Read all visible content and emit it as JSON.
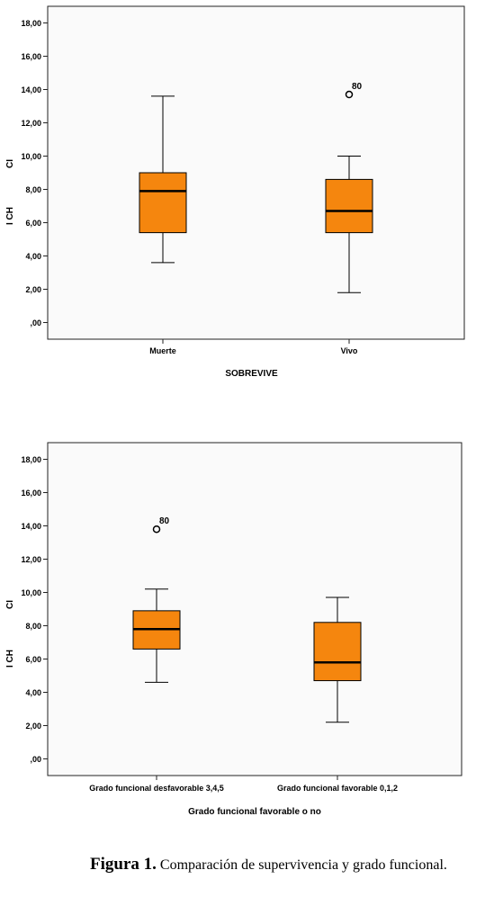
{
  "chart_data": [
    {
      "type": "boxplot",
      "xlabel": "SOBREVIVE",
      "ylabel": "I CH",
      "ylabel_extra": "CI",
      "ylim": [
        -1,
        19
      ],
      "yticks": [
        0,
        2,
        4,
        6,
        8,
        10,
        12,
        14,
        16,
        18
      ],
      "ytick_labels": [
        ",00",
        "2,00",
        "4,00",
        "6,00",
        "8,00",
        "10,00",
        "12,00",
        "14,00",
        "16,00",
        "18,00"
      ],
      "categories": [
        "Muerte",
        "Vivo"
      ],
      "boxes": [
        {
          "category": "Muerte",
          "whisker_low": 3.6,
          "q1": 5.4,
          "median": 7.9,
          "q3": 9.0,
          "whisker_high": 13.6,
          "outliers": []
        },
        {
          "category": "Vivo",
          "whisker_low": 1.8,
          "q1": 5.4,
          "median": 6.7,
          "q3": 8.6,
          "whisker_high": 10.0,
          "outliers": [
            {
              "value": 13.7,
              "label": "80"
            }
          ]
        }
      ],
      "box_color": "#f5860e",
      "grid": false
    },
    {
      "type": "boxplot",
      "xlabel": "Grado funcional favorable o no",
      "ylabel": "I CH",
      "ylabel_extra": "CI",
      "ylim": [
        -1,
        19
      ],
      "yticks": [
        0,
        2,
        4,
        6,
        8,
        10,
        12,
        14,
        16,
        18
      ],
      "ytick_labels": [
        ",00",
        "2,00",
        "4,00",
        "6,00",
        "8,00",
        "10,00",
        "12,00",
        "14,00",
        "16,00",
        "18,00"
      ],
      "categories": [
        "Grado funcional desfavorable 3,4,5",
        "Grado funcional favorable 0,1,2"
      ],
      "boxes": [
        {
          "category": "Grado funcional desfavorable 3,4,5",
          "whisker_low": 4.6,
          "q1": 6.6,
          "median": 7.8,
          "q3": 8.9,
          "whisker_high": 10.2,
          "outliers": [
            {
              "value": 13.8,
              "label": "80"
            }
          ]
        },
        {
          "category": "Grado funcional favorable 0,1,2",
          "whisker_low": 2.2,
          "q1": 4.7,
          "median": 5.8,
          "q3": 8.2,
          "whisker_high": 9.7,
          "outliers": []
        }
      ],
      "box_color": "#f5860e",
      "grid": false
    }
  ],
  "caption": {
    "label": "Figura 1.",
    "text": " Comparación de supervivencia y grado funcional."
  }
}
